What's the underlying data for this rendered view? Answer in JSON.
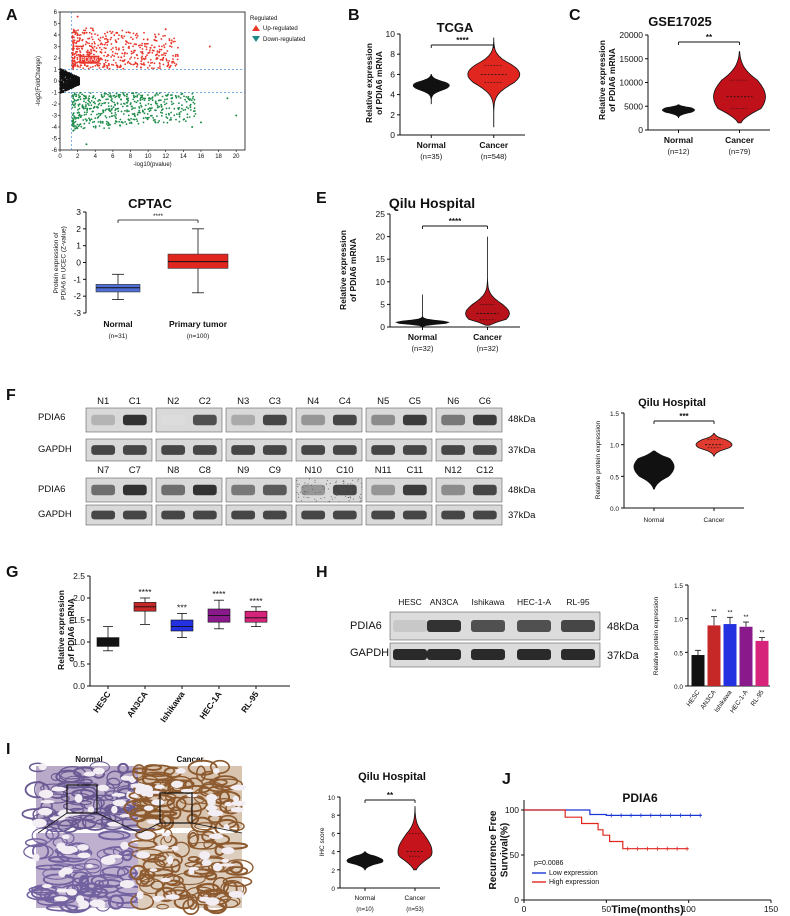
{
  "panels": {
    "A": {
      "letter": "A",
      "ylabel": "-log2(FoldChange)",
      "xlabel": "-log10(pvalue)",
      "yticks": [
        "6",
        "5",
        "4",
        "3",
        "2",
        "1",
        "0",
        "-1",
        "-2",
        "-3",
        "-4",
        "-5",
        "-6"
      ],
      "xticks": [
        "0",
        "2",
        "4",
        "6",
        "8",
        "10",
        "12",
        "14",
        "16",
        "18",
        "20"
      ],
      "gene": "PDIA6",
      "legend_title": "Regulated",
      "legend_up": "Up-regulated",
      "legend_down": "Down-regulated"
    },
    "B": {
      "letter": "B",
      "title": "TCGA",
      "ylabel": "Relative expression of PDIA6 mRNA",
      "sig": "****",
      "yticks": [
        "0",
        "2",
        "4",
        "6",
        "8",
        "10"
      ],
      "groups": [
        {
          "name": "Normal",
          "n": "(n=35)"
        },
        {
          "name": "Cancer",
          "n": "(n=548)"
        }
      ]
    },
    "C": {
      "letter": "C",
      "title": "GSE17025",
      "ylabel": "Relative expression of PDIA6 mRNA",
      "sig": "**",
      "yticks": [
        "0",
        "5000",
        "10000",
        "15000",
        "20000"
      ],
      "groups": [
        {
          "name": "Normal",
          "n": "(n=12)"
        },
        {
          "name": "Cancer",
          "n": "(n=79)"
        }
      ]
    },
    "D": {
      "letter": "D",
      "title": "CPTAC",
      "ylabel": "Protein expression of PDIA6 in UCEC (Z-value)",
      "sig": "****",
      "yticks": [
        "3",
        "2",
        "1",
        "0",
        "-1",
        "-2",
        "-3"
      ],
      "groups": [
        {
          "name": "Normal",
          "n": "(n=31)"
        },
        {
          "name": "Primary tumor",
          "n": "(n=100)"
        }
      ]
    },
    "E": {
      "letter": "E",
      "title": "Qilu Hospital",
      "ylabel": "Relative expression of PDIA6 mRNA",
      "sig": "****",
      "yticks": [
        "0",
        "5",
        "10",
        "15",
        "20",
        "25"
      ],
      "groups": [
        {
          "name": "Normal",
          "n": "(n=32)"
        },
        {
          "name": "Cancer",
          "n": "(n=32)"
        }
      ]
    },
    "F": {
      "letter": "F",
      "protein": "PDIA6",
      "control": "GAPDH",
      "kda_protein": "48kDa",
      "kda_control": "37kDa",
      "row1": [
        [
          "N1",
          "C1"
        ],
        [
          "N2",
          "C2"
        ],
        [
          "N3",
          "C3"
        ],
        [
          "N4",
          "C4"
        ],
        [
          "N5",
          "C5"
        ],
        [
          "N6",
          "C6"
        ]
      ],
      "row2": [
        [
          "N7",
          "C7"
        ],
        [
          "N8",
          "C8"
        ],
        [
          "N9",
          "C9"
        ],
        [
          "N10",
          "C10"
        ],
        [
          "N11",
          "C11"
        ],
        [
          "N12",
          "C12"
        ]
      ],
      "chart_title": "Qilu Hospital",
      "ylabel": "Relative protein expression",
      "sig": "***",
      "yticks": [
        "0.0",
        "0.5",
        "1.0",
        "1.5"
      ],
      "groups": [
        {
          "name": "Normal"
        },
        {
          "name": "Cancer"
        }
      ]
    },
    "G": {
      "letter": "G",
      "ylabel": "Relative expression of PDIA6 mRNA",
      "yticks": [
        "0.0",
        "0.5",
        "1.0",
        "1.5",
        "2.0",
        "2.5"
      ],
      "cats": [
        "HESC",
        "AN3CA",
        "Ishikawa",
        "HEC-1A",
        "RL-95"
      ],
      "sigs": [
        "",
        "****",
        "***",
        "****",
        "****"
      ]
    },
    "H": {
      "letter": "H",
      "protein": "PDIA6",
      "control": "GAPDH",
      "kda_protein": "48kDa",
      "kda_control": "37kDa",
      "lanes": [
        "HESC",
        "AN3CA",
        "Ishikawa",
        "HEC-1-A",
        "RL-95"
      ],
      "ylabel": "Relative protein expression",
      "yticks": [
        "0.0",
        "0.5",
        "1.0",
        "1.5"
      ],
      "cats": [
        "HESC",
        "AN3CA",
        "Ishikawa",
        "HEC-1-A",
        "RL-95"
      ],
      "sigs": [
        "",
        "**",
        "**",
        "**",
        "**"
      ]
    },
    "I": {
      "letter": "I",
      "normal": "Normal",
      "cancer": "Cancer",
      "chart_title": "Qilu Hospital",
      "ylabel": "IHC score",
      "sig": "**",
      "yticks": [
        "0",
        "2",
        "4",
        "6",
        "8",
        "10"
      ],
      "groups": [
        {
          "name": "Normal",
          "n": "(n=10)"
        },
        {
          "name": "Cancer",
          "n": "(n=53)"
        }
      ]
    },
    "J": {
      "letter": "J",
      "title": "PDIA6",
      "ylabel": "Recurrence Free Survival(%)",
      "xlabel": "Time(months)",
      "yticks": [
        "0",
        "50",
        "100"
      ],
      "xticks": [
        "0",
        "50",
        "100",
        "150"
      ],
      "pvalue": "p=0.0086",
      "legend_low": "Low expression",
      "legend_high": "High expression"
    }
  },
  "colors": {
    "up": "#e8372c",
    "down": "#1e8c4a",
    "ns": "#111111",
    "cancer_red": "#e0261f",
    "normal_blue": "#4f6fd6",
    "g_hesc": "#111111",
    "g_an3ca": "#c62828",
    "g_ishikawa": "#2331e0",
    "g_hec": "#8a1a8c",
    "g_rl95": "#d6247a",
    "km_low": "#1a35d6",
    "km_high": "#e0261f"
  },
  "chart_data": [
    {
      "id": "B",
      "type": "violin",
      "title": "TCGA",
      "ylim": [
        0,
        10
      ],
      "series": [
        {
          "name": "Normal",
          "median": 4.9,
          "q1": 4.5,
          "q3": 5.2,
          "min": 3.1,
          "max": 6.0
        },
        {
          "name": "Cancer",
          "median": 6.0,
          "q1": 5.2,
          "q3": 6.9,
          "min": 0.8,
          "max": 9.6
        }
      ]
    },
    {
      "id": "C",
      "type": "violin",
      "title": "GSE17025",
      "ylim": [
        0,
        20000
      ],
      "series": [
        {
          "name": "Normal",
          "median": 4200,
          "q1": 3700,
          "q3": 4700,
          "min": 2600,
          "max": 5300
        },
        {
          "name": "Cancer",
          "median": 7000,
          "q1": 4500,
          "q3": 10500,
          "min": 1500,
          "max": 16500
        }
      ]
    },
    {
      "id": "D",
      "type": "box",
      "title": "CPTAC",
      "ylim": [
        -3,
        3
      ],
      "series": [
        {
          "name": "Normal",
          "median": -1.5,
          "q1": -1.75,
          "q3": -1.3,
          "min": -2.2,
          "max": -0.7
        },
        {
          "name": "Primary tumor",
          "median": 0.05,
          "q1": -0.35,
          "q3": 0.5,
          "min": -1.8,
          "max": 2.0
        }
      ]
    },
    {
      "id": "E",
      "type": "violin",
      "title": "Qilu Hospital",
      "ylim": [
        0,
        25
      ],
      "series": [
        {
          "name": "Normal",
          "median": 1.0,
          "q1": 0.7,
          "q3": 1.3,
          "min": 0.1,
          "max": 7.2
        },
        {
          "name": "Cancer",
          "median": 3.0,
          "q1": 1.6,
          "q3": 5.0,
          "min": 0.4,
          "max": 20.0
        }
      ]
    },
    {
      "id": "F",
      "type": "violin",
      "title": "Qilu Hospital",
      "ylim": [
        0,
        1.5
      ],
      "series": [
        {
          "name": "Normal",
          "median": 0.65,
          "q1": 0.5,
          "q3": 0.78,
          "min": 0.3,
          "max": 0.9
        },
        {
          "name": "Cancer",
          "median": 1.0,
          "q1": 0.95,
          "q3": 1.08,
          "min": 0.82,
          "max": 1.18
        }
      ]
    },
    {
      "id": "G",
      "type": "box",
      "ylim": [
        0,
        2.5
      ],
      "series": [
        {
          "name": "HESC",
          "median": 1.0,
          "q1": 0.9,
          "q3": 1.1,
          "min": 0.8,
          "max": 1.35
        },
        {
          "name": "AN3CA",
          "median": 1.8,
          "q1": 1.7,
          "q3": 1.9,
          "min": 1.4,
          "max": 2.0
        },
        {
          "name": "Ishikawa",
          "median": 1.35,
          "q1": 1.25,
          "q3": 1.5,
          "min": 1.1,
          "max": 1.65
        },
        {
          "name": "HEC-1A",
          "median": 1.6,
          "q1": 1.45,
          "q3": 1.75,
          "min": 1.3,
          "max": 1.95
        },
        {
          "name": "RL-95",
          "median": 1.55,
          "q1": 1.45,
          "q3": 1.7,
          "min": 1.35,
          "max": 1.8
        }
      ]
    },
    {
      "id": "H",
      "type": "bar",
      "ylim": [
        0,
        1.5
      ],
      "categories": [
        "HESC",
        "AN3CA",
        "Ishikawa",
        "HEC-1-A",
        "RL-95"
      ],
      "values": [
        0.46,
        0.9,
        0.92,
        0.88,
        0.67
      ],
      "errors": [
        0.07,
        0.13,
        0.1,
        0.07,
        0.05
      ]
    },
    {
      "id": "I",
      "type": "violin",
      "title": "Qilu Hospital",
      "ylim": [
        0,
        10
      ],
      "series": [
        {
          "name": "Normal",
          "median": 3.0,
          "q1": 2.8,
          "q3": 3.5,
          "min": 2.0,
          "max": 4.0
        },
        {
          "name": "Cancer",
          "median": 4.0,
          "q1": 3.5,
          "q3": 6.0,
          "min": 2.0,
          "max": 9.0
        }
      ]
    },
    {
      "id": "J",
      "type": "line",
      "title": "PDIA6",
      "xlim": [
        0,
        150
      ],
      "ylim": [
        0,
        100
      ],
      "series": [
        {
          "name": "Low expression",
          "x": [
            0,
            40,
            40,
            50,
            50,
            108
          ],
          "y": [
            100,
            100,
            95,
            95,
            94,
            94
          ]
        },
        {
          "name": "High expression",
          "x": [
            0,
            25,
            25,
            35,
            35,
            45,
            45,
            48,
            48,
            52,
            52,
            60,
            60,
            100
          ],
          "y": [
            100,
            100,
            92,
            92,
            85,
            85,
            78,
            78,
            72,
            72,
            65,
            65,
            57,
            57
          ]
        }
      ]
    }
  ]
}
